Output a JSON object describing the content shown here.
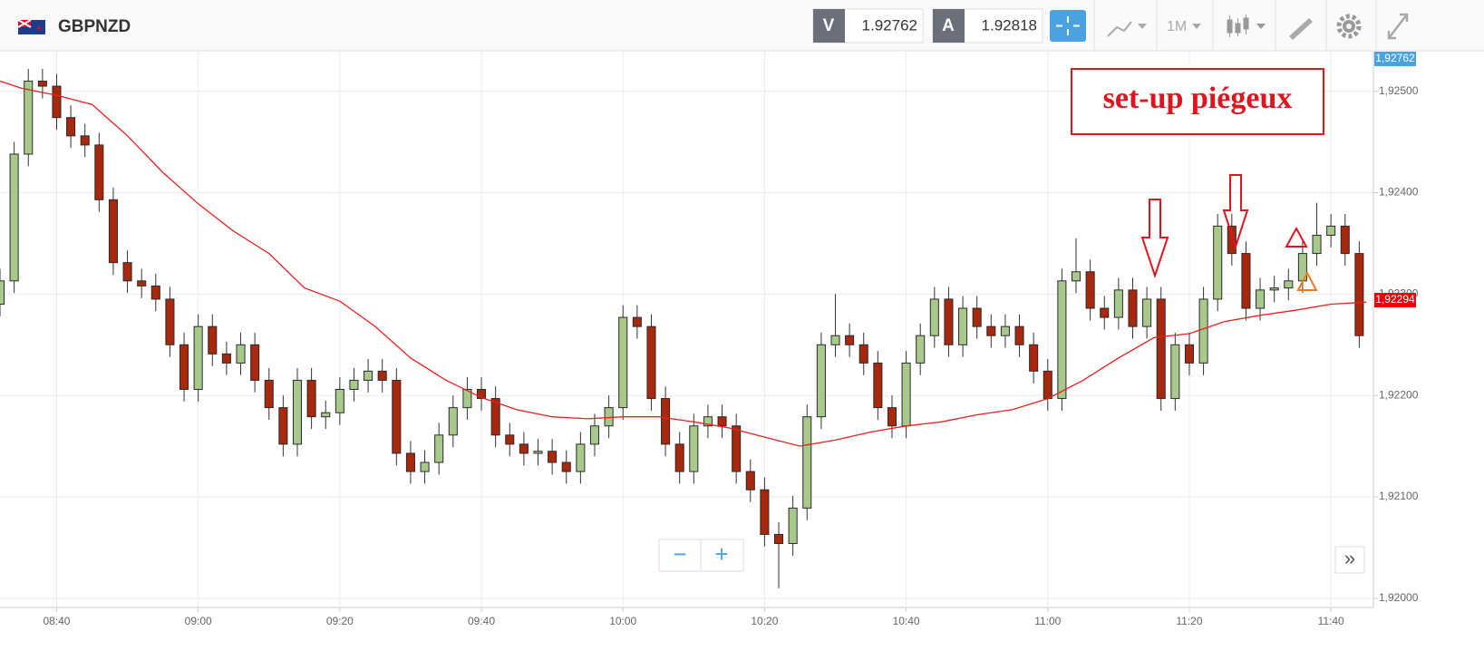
{
  "header": {
    "symbol": "GBPNZD",
    "bid_label": "V",
    "bid": "1.92762",
    "ask_label": "A",
    "ask": "1.92818",
    "timeframe": "1M"
  },
  "annotation": "set-up piégeux",
  "controls": {
    "zoom_out": "−",
    "zoom_in": "+",
    "scroll": "»"
  },
  "chart_data": {
    "type": "candlestick",
    "x": [
      "08:32",
      "08:34",
      "08:36",
      "08:38",
      "08:40",
      "08:42",
      "08:44",
      "08:46",
      "08:48",
      "08:50",
      "08:52",
      "08:54",
      "08:56",
      "08:58",
      "09:00",
      "09:02",
      "09:04",
      "09:06",
      "09:08",
      "09:10",
      "09:12",
      "09:14",
      "09:16",
      "09:18",
      "09:20",
      "09:22",
      "09:24",
      "09:26",
      "09:28",
      "09:30",
      "09:32",
      "09:34",
      "09:36",
      "09:38",
      "09:40",
      "09:42",
      "09:44",
      "09:46",
      "09:48",
      "09:50",
      "09:52",
      "09:54",
      "09:56",
      "09:58",
      "10:00",
      "10:02",
      "10:04",
      "10:06",
      "10:08",
      "10:10",
      "10:12",
      "10:14",
      "10:16",
      "10:18",
      "10:20",
      "10:22",
      "10:24",
      "10:26",
      "10:28",
      "10:30",
      "10:32",
      "10:34",
      "10:36",
      "10:38",
      "10:40",
      "10:42",
      "10:44",
      "10:46",
      "10:48",
      "10:50",
      "10:52",
      "10:54",
      "10:56",
      "10:58",
      "11:00",
      "11:02",
      "11:04",
      "11:06",
      "11:08",
      "11:10",
      "11:12",
      "11:14",
      "11:16",
      "11:18",
      "11:20",
      "11:22",
      "11:24",
      "11:26",
      "11:28",
      "11:30",
      "11:32",
      "11:34",
      "11:36",
      "11:38",
      "11:40",
      "11:42",
      "11:44"
    ],
    "open": [
      1.9229,
      1.92313,
      1.92438,
      1.9251,
      1.92505,
      1.92474,
      1.92456,
      1.92447,
      1.92393,
      1.92331,
      1.92313,
      1.92308,
      1.92295,
      1.9225,
      1.92206,
      1.92268,
      1.92241,
      1.92232,
      1.9225,
      1.92215,
      1.92188,
      1.92152,
      1.92215,
      1.92179,
      1.92183,
      1.92206,
      1.92215,
      1.92224,
      1.92215,
      1.92143,
      1.92125,
      1.92134,
      1.92161,
      1.92188,
      1.92206,
      1.92197,
      1.92161,
      1.92152,
      1.92143,
      1.92145,
      1.92134,
      1.92125,
      1.92152,
      1.9217,
      1.92188,
      1.92277,
      1.92268,
      1.92197,
      1.92152,
      1.92125,
      1.9217,
      1.92179,
      1.9217,
      1.92125,
      1.92107,
      1.92063,
      1.92054,
      1.92089,
      1.92179,
      1.9225,
      1.92259,
      1.9225,
      1.92232,
      1.92188,
      1.9217,
      1.92232,
      1.92259,
      1.92295,
      1.9225,
      1.92286,
      1.92268,
      1.92259,
      1.92268,
      1.9225,
      1.92224,
      1.92197,
      1.92313,
      1.92322,
      1.92286,
      1.92277,
      1.92304,
      1.92268,
      1.92295,
      1.92197,
      1.9225,
      1.92232,
      1.92295,
      1.92367,
      1.9234,
      1.92286,
      1.92304,
      1.92306,
      1.92313,
      1.9234,
      1.92358,
      1.92367,
      1.9234
    ],
    "high": [
      1.92325,
      1.9245,
      1.92522,
      1.92522,
      1.92517,
      1.92486,
      1.92468,
      1.92459,
      1.92405,
      1.92343,
      1.92325,
      1.9232,
      1.92307,
      1.92262,
      1.9228,
      1.9228,
      1.92253,
      1.92262,
      1.92262,
      1.92227,
      1.922,
      1.92227,
      1.92227,
      1.92195,
      1.92218,
      1.92227,
      1.92236,
      1.92236,
      1.92227,
      1.92155,
      1.92146,
      1.92173,
      1.922,
      1.92218,
      1.92218,
      1.92209,
      1.92173,
      1.92164,
      1.92157,
      1.92157,
      1.92146,
      1.92164,
      1.92182,
      1.922,
      1.92289,
      1.92289,
      1.9228,
      1.92209,
      1.92164,
      1.92182,
      1.92191,
      1.92191,
      1.92182,
      1.92137,
      1.92119,
      1.92075,
      1.92101,
      1.92191,
      1.92262,
      1.923,
      1.92271,
      1.92262,
      1.92244,
      1.922,
      1.92244,
      1.92271,
      1.92307,
      1.92307,
      1.92298,
      1.92298,
      1.9228,
      1.9228,
      1.9228,
      1.92262,
      1.92236,
      1.92325,
      1.92355,
      1.92334,
      1.92298,
      1.92316,
      1.92316,
      1.92307,
      1.92307,
      1.92262,
      1.92262,
      1.92307,
      1.92379,
      1.92379,
      1.92352,
      1.92316,
      1.92318,
      1.92325,
      1.92352,
      1.9239,
      1.92379,
      1.92379,
      1.92352
    ],
    "low": [
      1.92278,
      1.92301,
      1.92426,
      1.92493,
      1.92462,
      1.92444,
      1.92435,
      1.92381,
      1.92319,
      1.92301,
      1.92296,
      1.92283,
      1.92238,
      1.92194,
      1.92194,
      1.92229,
      1.9222,
      1.9222,
      1.92203,
      1.92176,
      1.9214,
      1.9214,
      1.92167,
      1.92167,
      1.92171,
      1.92194,
      1.92203,
      1.92203,
      1.92131,
      1.92113,
      1.92113,
      1.92122,
      1.92149,
      1.92176,
      1.92185,
      1.92149,
      1.9214,
      1.92131,
      1.92131,
      1.92122,
      1.92113,
      1.92113,
      1.9214,
      1.92158,
      1.92176,
      1.92256,
      1.92185,
      1.9214,
      1.92113,
      1.92113,
      1.92158,
      1.92158,
      1.92113,
      1.92095,
      1.92051,
      1.9201,
      1.92042,
      1.92077,
      1.92167,
      1.92238,
      1.92238,
      1.9222,
      1.92176,
      1.92158,
      1.92158,
      1.9222,
      1.92247,
      1.92238,
      1.92238,
      1.92256,
      1.92247,
      1.92247,
      1.92238,
      1.92212,
      1.92185,
      1.92185,
      1.92301,
      1.92274,
      1.92265,
      1.92265,
      1.92256,
      1.92256,
      1.92185,
      1.92185,
      1.9222,
      1.9222,
      1.92283,
      1.92328,
      1.92274,
      1.92274,
      1.92292,
      1.92294,
      1.92301,
      1.92328,
      1.92346,
      1.92328,
      1.92247
    ],
    "close": [
      1.92313,
      1.92438,
      1.9251,
      1.92505,
      1.92474,
      1.92456,
      1.92447,
      1.92393,
      1.92331,
      1.92313,
      1.92308,
      1.92295,
      1.9225,
      1.92206,
      1.92268,
      1.92241,
      1.92232,
      1.9225,
      1.92215,
      1.92188,
      1.92152,
      1.92215,
      1.92179,
      1.92183,
      1.92206,
      1.92215,
      1.92224,
      1.92215,
      1.92143,
      1.92125,
      1.92134,
      1.92161,
      1.92188,
      1.92206,
      1.92197,
      1.92161,
      1.92152,
      1.92143,
      1.92145,
      1.92134,
      1.92125,
      1.92152,
      1.9217,
      1.92188,
      1.92277,
      1.92268,
      1.92197,
      1.92152,
      1.92125,
      1.9217,
      1.92179,
      1.9217,
      1.92125,
      1.92107,
      1.92063,
      1.92054,
      1.92089,
      1.92179,
      1.9225,
      1.92259,
      1.9225,
      1.92232,
      1.92188,
      1.9217,
      1.92232,
      1.92259,
      1.92295,
      1.9225,
      1.92286,
      1.92268,
      1.92259,
      1.92268,
      1.9225,
      1.92224,
      1.92197,
      1.92313,
      1.92322,
      1.92286,
      1.92277,
      1.92304,
      1.92268,
      1.92295,
      1.92197,
      1.9225,
      1.92232,
      1.92295,
      1.92367,
      1.9234,
      1.92286,
      1.92304,
      1.92306,
      1.92313,
      1.9234,
      1.92358,
      1.92367,
      1.9234,
      1.92259
    ],
    "up_color": "#a9c98c",
    "down_color": "#a8280e",
    "ma_x": [
      "08:32",
      "08:35",
      "08:40",
      "08:45",
      "08:50",
      "08:55",
      "09:00",
      "09:05",
      "09:10",
      "09:15",
      "09:20",
      "09:25",
      "09:30",
      "09:35",
      "09:40",
      "09:45",
      "09:50",
      "09:55",
      "10:00",
      "10:05",
      "10:10",
      "10:15",
      "10:20",
      "10:25",
      "10:30",
      "10:35",
      "10:40",
      "10:45",
      "10:50",
      "10:55",
      "11:00",
      "11:05",
      "11:10",
      "11:15",
      "11:20",
      "11:25",
      "11:30",
      "11:35",
      "11:40",
      "11:45"
    ],
    "ma_values": [
      1.9251,
      1.92503,
      1.92496,
      1.92487,
      1.92456,
      1.9242,
      1.92389,
      1.92362,
      1.9234,
      1.92306,
      1.92293,
      1.92268,
      1.92237,
      1.92215,
      1.92198,
      1.92186,
      1.92179,
      1.92177,
      1.92179,
      1.92179,
      1.92174,
      1.92168,
      1.92159,
      1.9215,
      1.92156,
      1.92164,
      1.9217,
      1.92174,
      1.92181,
      1.92186,
      1.92197,
      1.92215,
      1.92237,
      1.92257,
      1.92261,
      1.92273,
      1.92279,
      1.92284,
      1.9229,
      1.92292
    ],
    "ma_color": "#e8201e",
    "xlim": [
      "08:32",
      "11:46"
    ],
    "xticks": [
      "08:40",
      "09:00",
      "09:20",
      "09:40",
      "10:00",
      "10:20",
      "10:40",
      "11:00",
      "11:20",
      "11:40"
    ],
    "ylim": [
      1.91991,
      1.92539
    ],
    "yticks": [
      {
        "value": 1.92,
        "label": "1,92000"
      },
      {
        "value": 1.921,
        "label": "1,92100"
      },
      {
        "value": 1.922,
        "label": "1,92200"
      },
      {
        "value": 1.923,
        "label": "1,92300"
      },
      {
        "value": 1.924,
        "label": "1,92400"
      },
      {
        "value": 1.925,
        "label": "1,92500"
      }
    ],
    "price_labels": [
      {
        "value": 1.92762,
        "label": "1,92762",
        "color": "#4aa3df"
      },
      {
        "value": 1.92294,
        "label": "1,92294",
        "color": "#e8000b"
      }
    ],
    "grid": true
  }
}
